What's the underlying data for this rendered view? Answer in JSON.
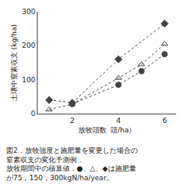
{
  "chart_data": {
    "type": "line",
    "xlabel": "放牧頭数  頭/ha）",
    "ylabel": "土壌中窒素収支 (kg/ha)",
    "xlim": [
      0.5,
      6.5
    ],
    "ylim": [
      0,
      300
    ],
    "xticks": [
      2,
      4,
      6
    ],
    "yticks": [
      0,
      100,
      200,
      300
    ],
    "grid": false,
    "series": [
      {
        "x": [
          1,
          2,
          4,
          6
        ],
        "values": [
          40,
          32,
          160,
          265
        ],
        "marker": "diamond",
        "color": "#444444",
        "line_style": "dotted"
      },
      {
        "x": [
          1,
          2,
          4,
          5,
          6
        ],
        "values": [
          12,
          28,
          105,
          145,
          205
        ],
        "marker": "triangle-up-open",
        "color": "#444444",
        "line_style": "dotted"
      },
      {
        "x": [
          2,
          4,
          5,
          6
        ],
        "values": [
          28,
          85,
          125,
          175
        ],
        "marker": "circle",
        "color": "#444444",
        "line_style": "dotted"
      }
    ],
    "annotations": [
      "図2．放牧強度と施肥量を変更した場合の",
      "窒素収支の変化予測例．",
      "放牧期間中の積算値．●、△、◆は施肥量",
      "が75，150，300kgN/ha/year。"
    ]
  }
}
